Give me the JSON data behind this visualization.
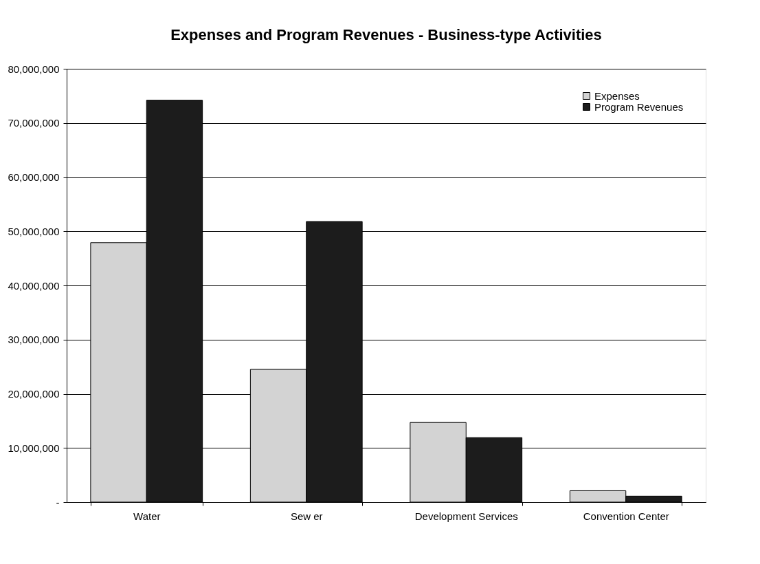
{
  "chart_data": {
    "type": "bar",
    "title": "Expenses and Program Revenues - Business-type Activities",
    "categories": [
      "Water",
      "Sew er",
      "Development Services",
      "Convention Center"
    ],
    "series": [
      {
        "name": "Expenses",
        "color": "#d3d3d3",
        "values": [
          47900000,
          24500000,
          14700000,
          2100000
        ]
      },
      {
        "name": "Program Revenues",
        "color": "#1c1c1c",
        "values": [
          74200000,
          51800000,
          11900000,
          1100000
        ]
      }
    ],
    "ylim": [
      0,
      80000000
    ],
    "yticks": [
      {
        "value": 0,
        "label": "-"
      },
      {
        "value": 10000000,
        "label": "10,000,000"
      },
      {
        "value": 20000000,
        "label": "20,000,000"
      },
      {
        "value": 30000000,
        "label": "30,000,000"
      },
      {
        "value": 40000000,
        "label": "40,000,000"
      },
      {
        "value": 50000000,
        "label": "50,000,000"
      },
      {
        "value": 60000000,
        "label": "60,000,000"
      },
      {
        "value": 70000000,
        "label": "70,000,000"
      },
      {
        "value": 80000000,
        "label": "80,000,000"
      }
    ],
    "grid": "y",
    "legend": "top right"
  }
}
